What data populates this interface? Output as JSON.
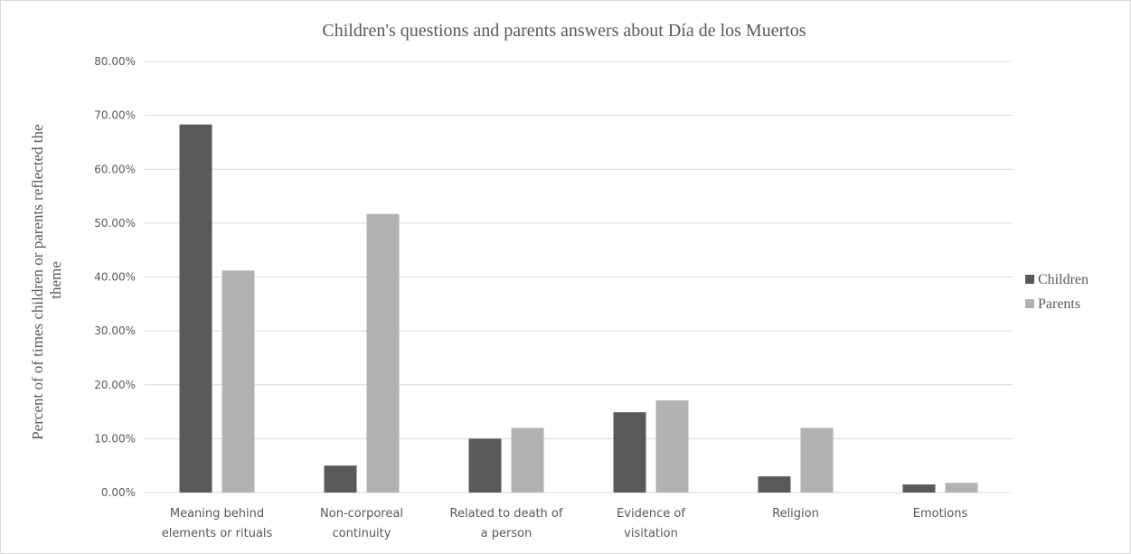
{
  "chart_data": {
    "type": "bar",
    "title": "Children's questions and parents answers about Día de los Muertos",
    "xlabel": "",
    "ylabel_lines": [
      "Percent of of times children or parents reflected the",
      "theme"
    ],
    "ylim": [
      0,
      80
    ],
    "yticks": [
      0,
      10,
      20,
      30,
      40,
      50,
      60,
      70,
      80
    ],
    "ytick_labels": [
      "0.00%",
      "10.00%",
      "20.00%",
      "30.00%",
      "40.00%",
      "50.00%",
      "60.00%",
      "70.00%",
      "80.00%"
    ],
    "grid": true,
    "legend_position": "right",
    "categories": [
      [
        "Meaning behind",
        "elements or rituals"
      ],
      [
        "Non-corporeal",
        "continuity"
      ],
      [
        "Related to death of",
        "a person"
      ],
      [
        "Evidence of",
        "visitation"
      ],
      [
        "Religion"
      ],
      [
        "Emotions"
      ]
    ],
    "series": [
      {
        "name": "Children",
        "color": "#595959",
        "values": [
          68.3,
          5.0,
          10.0,
          14.9,
          3.0,
          1.5
        ]
      },
      {
        "name": "Parents",
        "color": "#b2b2b2",
        "values": [
          41.2,
          51.7,
          12.0,
          17.1,
          12.0,
          1.8
        ]
      }
    ]
  }
}
